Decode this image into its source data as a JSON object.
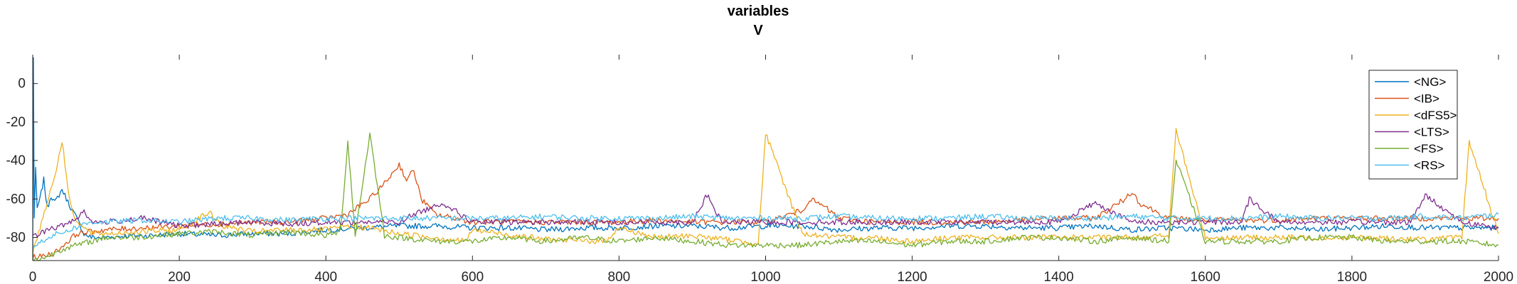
{
  "chart_data": {
    "type": "line",
    "title": "variables",
    "subtitle": "V",
    "xlabel": "",
    "ylabel": "",
    "xlim": [
      0,
      2000
    ],
    "ylim": [
      -92,
      15
    ],
    "xticks": [
      0,
      200,
      400,
      600,
      800,
      1000,
      1200,
      1400,
      1600,
      1800,
      2000
    ],
    "yticks": [
      0,
      -20,
      -40,
      -60,
      -80
    ],
    "legend_position": "top-right",
    "grid": false,
    "series": [
      {
        "name": "<NG>",
        "color": "#0072BD",
        "x": [
          0,
          1,
          2,
          4,
          6,
          10,
          15,
          20,
          25,
          30,
          40,
          50,
          60,
          70,
          80,
          100,
          130,
          160,
          200,
          250,
          300,
          350,
          400,
          450,
          500,
          550,
          600,
          650,
          700,
          750,
          800,
          850,
          900,
          950,
          1000,
          1050,
          1100,
          1150,
          1200,
          1250,
          1300,
          1350,
          1400,
          1450,
          1500,
          1550,
          1600,
          1650,
          1700,
          1750,
          1800,
          1850,
          1900,
          1950,
          2000
        ],
        "y": [
          -90,
          14,
          -70,
          -45,
          -65,
          -60,
          -50,
          -65,
          -58,
          -62,
          -55,
          -63,
          -70,
          -78,
          -80,
          -80,
          -79,
          -79,
          -78,
          -79,
          -78,
          -78,
          -76,
          -75,
          -74,
          -74,
          -75,
          -75,
          -76,
          -75,
          -75,
          -74,
          -74,
          -75,
          -74,
          -74,
          -76,
          -75,
          -75,
          -74,
          -74,
          -75,
          -75,
          -74,
          -76,
          -75,
          -76,
          -75,
          -75,
          -76,
          -75,
          -74,
          -75,
          -75,
          -75
        ]
      },
      {
        "name": "<IB>",
        "color": "#D95319",
        "x": [
          0,
          10,
          30,
          60,
          100,
          150,
          200,
          250,
          300,
          350,
          400,
          430,
          460,
          480,
          500,
          510,
          520,
          530,
          550,
          600,
          650,
          700,
          750,
          800,
          850,
          900,
          950,
          1000,
          1050,
          1060,
          1080,
          1100,
          1150,
          1200,
          1250,
          1300,
          1350,
          1400,
          1450,
          1490,
          1500,
          1510,
          1550,
          1600,
          1650,
          1700,
          1750,
          1800,
          1850,
          1900,
          1950,
          2000
        ],
        "y": [
          -90,
          -90,
          -88,
          -78,
          -76,
          -75,
          -74,
          -73,
          -72,
          -72,
          -70,
          -68,
          -60,
          -52,
          -42,
          -50,
          -45,
          -60,
          -68,
          -72,
          -72,
          -72,
          -72,
          -72,
          -71,
          -72,
          -72,
          -72,
          -66,
          -60,
          -64,
          -70,
          -72,
          -72,
          -72,
          -72,
          -71,
          -70,
          -70,
          -60,
          -56,
          -62,
          -70,
          -71,
          -71,
          -71,
          -70,
          -70,
          -70,
          -70,
          -70,
          -70
        ]
      },
      {
        "name": "<dFS5>",
        "color": "#EDB120",
        "x": [
          0,
          30,
          40,
          50,
          60,
          80,
          100,
          150,
          200,
          240,
          260,
          300,
          350,
          400,
          430,
          460,
          500,
          550,
          590,
          600,
          700,
          780,
          800,
          850,
          900,
          990,
          1000,
          1050,
          1100,
          1150,
          1200,
          1250,
          1300,
          1400,
          1500,
          1550,
          1560,
          1600,
          1700,
          1800,
          1900,
          1950,
          1960,
          2000
        ],
        "y": [
          -88,
          -48,
          -30,
          -60,
          -72,
          -78,
          -78,
          -77,
          -76,
          -67,
          -74,
          -77,
          -76,
          -76,
          -74,
          -75,
          -78,
          -80,
          -82,
          -76,
          -81,
          -82,
          -75,
          -80,
          -79,
          -83,
          -26,
          -78,
          -80,
          -80,
          -82,
          -80,
          -80,
          -80,
          -80,
          -79,
          -24,
          -80,
          -80,
          -80,
          -81,
          -80,
          -30,
          -78
        ]
      },
      {
        "name": "<LTS>",
        "color": "#7E2F8E",
        "x": [
          0,
          20,
          40,
          60,
          70,
          80,
          100,
          150,
          200,
          250,
          300,
          350,
          400,
          450,
          500,
          520,
          560,
          600,
          700,
          800,
          900,
          920,
          940,
          1000,
          1100,
          1200,
          1300,
          1400,
          1450,
          1500,
          1600,
          1650,
          1660,
          1700,
          1800,
          1880,
          1900,
          1950,
          2000
        ],
        "y": [
          -80,
          -76,
          -74,
          -70,
          -66,
          -72,
          -72,
          -70,
          -74,
          -73,
          -72,
          -73,
          -72,
          -72,
          -72,
          -68,
          -62,
          -72,
          -72,
          -72,
          -72,
          -58,
          -72,
          -72,
          -72,
          -72,
          -72,
          -72,
          -62,
          -72,
          -72,
          -72,
          -60,
          -72,
          -72,
          -72,
          -58,
          -72,
          -75
        ]
      },
      {
        "name": "<FS>",
        "color": "#77AC30",
        "x": [
          0,
          20,
          40,
          60,
          80,
          100,
          140,
          200,
          250,
          300,
          350,
          400,
          420,
          430,
          440,
          460,
          480,
          500,
          550,
          600,
          650,
          700,
          750,
          800,
          850,
          900,
          950,
          1000,
          1050,
          1100,
          1150,
          1200,
          1250,
          1300,
          1350,
          1400,
          1450,
          1500,
          1550,
          1560,
          1600,
          1650,
          1700,
          1750,
          1800,
          1850,
          1900,
          1950,
          2000
        ],
        "y": [
          -92,
          -90,
          -86,
          -84,
          -82,
          -80,
          -80,
          -78,
          -77,
          -79,
          -77,
          -79,
          -77,
          -30,
          -79,
          -26,
          -79,
          -80,
          -82,
          -82,
          -80,
          -82,
          -80,
          -82,
          -80,
          -82,
          -84,
          -84,
          -84,
          -82,
          -82,
          -84,
          -82,
          -82,
          -80,
          -80,
          -82,
          -80,
          -82,
          -40,
          -82,
          -82,
          -82,
          -80,
          -80,
          -82,
          -82,
          -82,
          -84
        ]
      },
      {
        "name": "<RS>",
        "color": "#4DBEEE",
        "x": [
          0,
          20,
          50,
          80,
          100,
          150,
          200,
          250,
          300,
          350,
          400,
          450,
          500,
          550,
          600,
          650,
          700,
          750,
          800,
          850,
          900,
          950,
          1000,
          1050,
          1100,
          1150,
          1200,
          1250,
          1300,
          1350,
          1400,
          1450,
          1500,
          1550,
          1600,
          1650,
          1700,
          1750,
          1800,
          1850,
          1900,
          1950,
          2000
        ],
        "y": [
          -85,
          -80,
          -76,
          -72,
          -72,
          -71,
          -72,
          -70,
          -70,
          -71,
          -70,
          -70,
          -70,
          -70,
          -70,
          -70,
          -69,
          -70,
          -70,
          -70,
          -69,
          -70,
          -70,
          -70,
          -69,
          -70,
          -70,
          -70,
          -69,
          -70,
          -70,
          -70,
          -69,
          -70,
          -70,
          -70,
          -69,
          -70,
          -70,
          -70,
          -69,
          -70,
          -68
        ]
      }
    ]
  }
}
